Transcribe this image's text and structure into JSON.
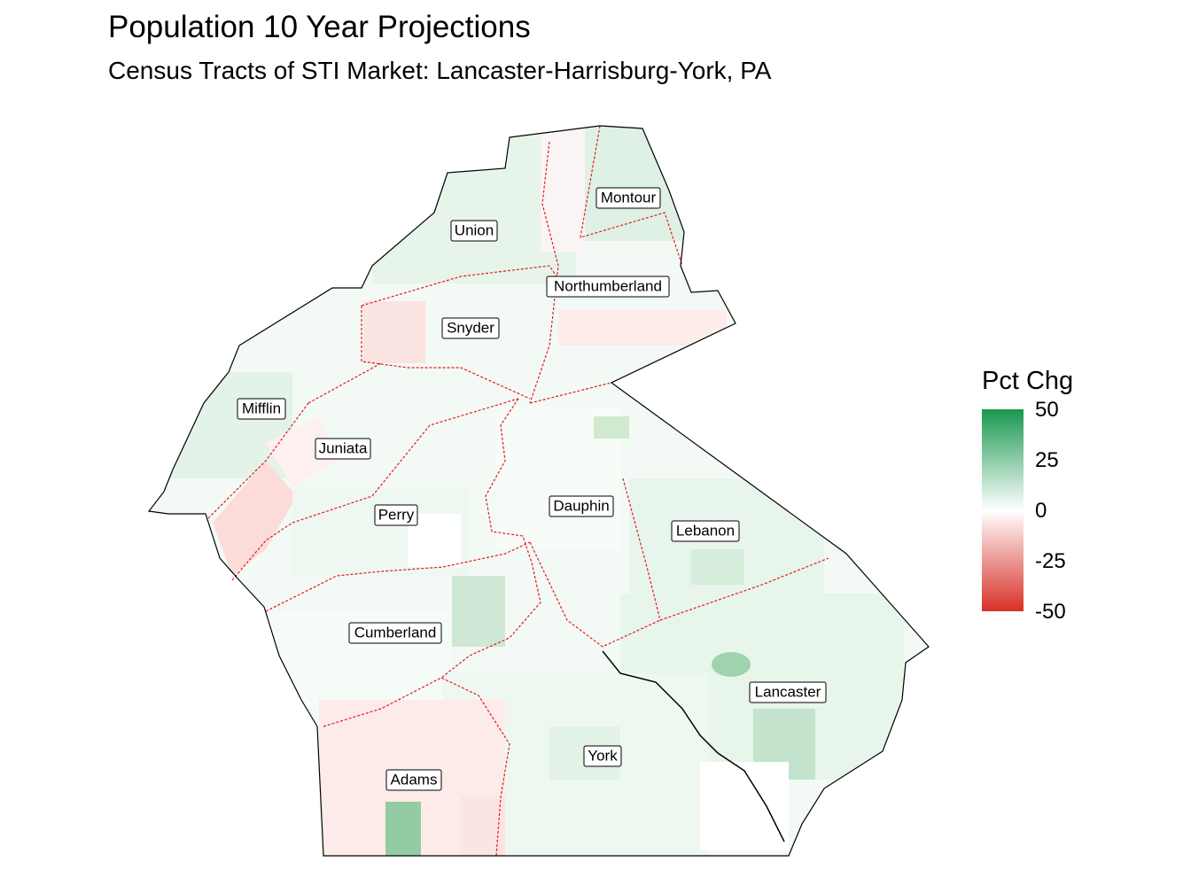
{
  "title": "Population 10 Year Projections",
  "subtitle": "Census Tracts of STI Market: Lancaster-Harrisburg-York, PA",
  "legend": {
    "title": "Pct Chg",
    "ticks": [
      "50",
      "25",
      "0",
      "-25",
      "-50"
    ],
    "range": [
      -50,
      50
    ],
    "colors": {
      "high": "#1a9850",
      "mid": "#ffffff",
      "low": "#d73027"
    }
  },
  "boundary_colors": {
    "market_outline": "#000000",
    "county_lines": "#e31a1c"
  },
  "counties": [
    {
      "name": "Montour"
    },
    {
      "name": "Union"
    },
    {
      "name": "Northumberland"
    },
    {
      "name": "Snyder"
    },
    {
      "name": "Mifflin"
    },
    {
      "name": "Juniata"
    },
    {
      "name": "Perry"
    },
    {
      "name": "Dauphin"
    },
    {
      "name": "Lebanon"
    },
    {
      "name": "Cumberland"
    },
    {
      "name": "Lancaster"
    },
    {
      "name": "York"
    },
    {
      "name": "Adams"
    }
  ]
}
